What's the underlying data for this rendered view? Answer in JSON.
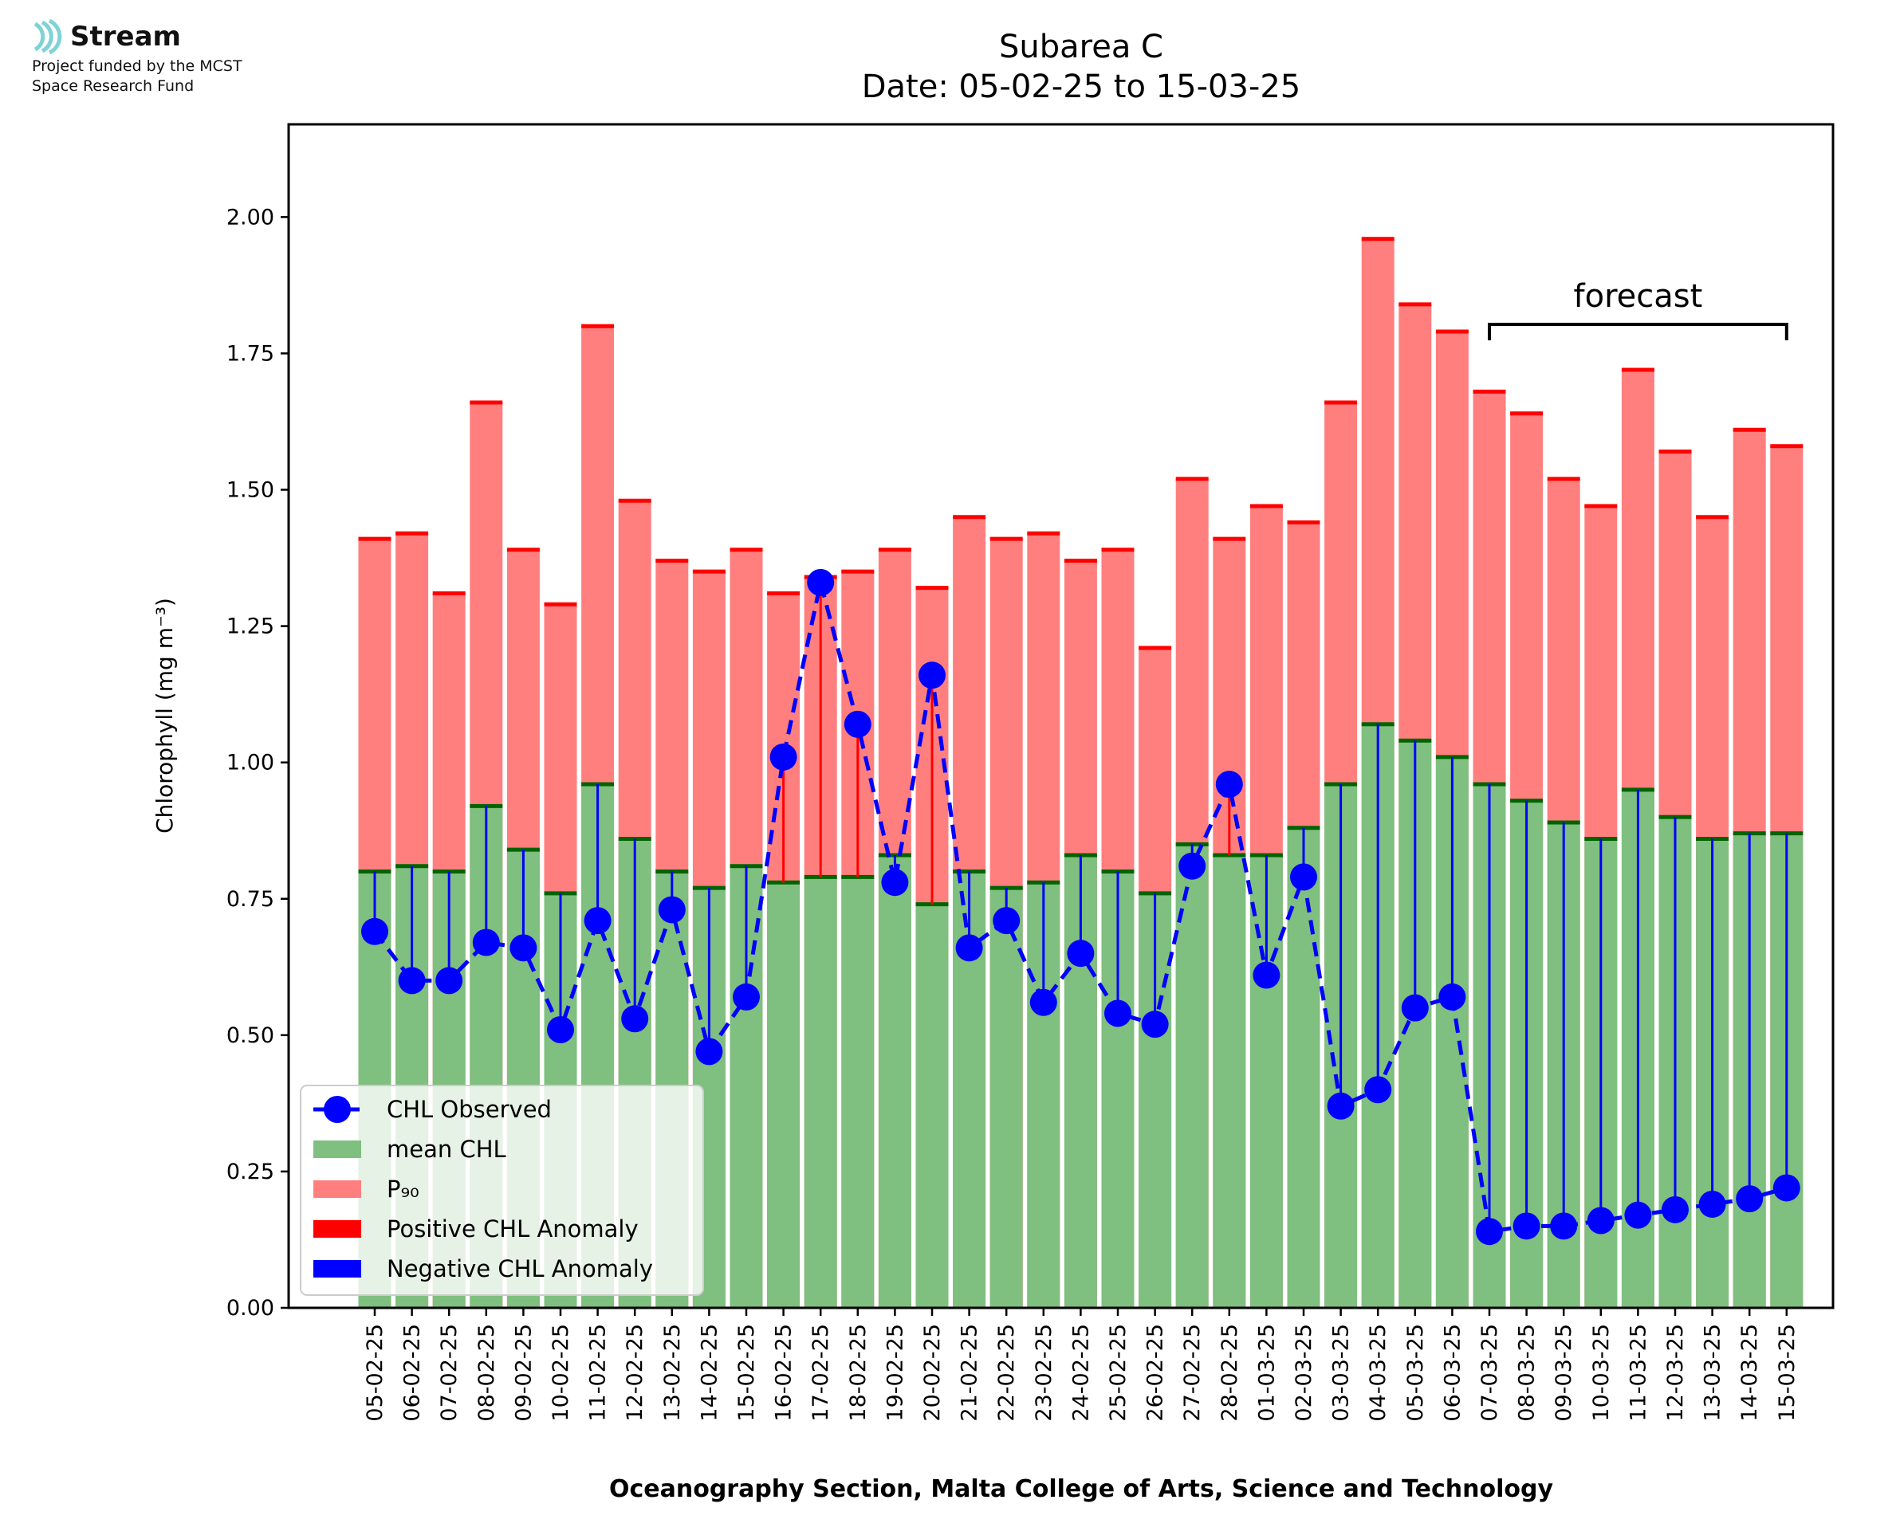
{
  "logo": {
    "name": "Stream",
    "line1": "Project funded by the MCST",
    "line2": "Space Research Fund"
  },
  "chart_data": {
    "type": "bar",
    "title": "Subarea C",
    "subtitle": "Date: 05-02-25 to 15-03-25",
    "xlabel": "Oceanography Section, Malta College of Arts, Science and Technology",
    "ylabel": "Chlorophyll (mg m⁻³)",
    "ylim": [
      0,
      2.17
    ],
    "yticks": [
      "0.00",
      "0.25",
      "0.50",
      "0.75",
      "1.00",
      "1.25",
      "1.50",
      "1.75",
      "2.00"
    ],
    "grid": false,
    "legend_position": "lower-left",
    "forecast_label": "forecast",
    "forecast_range": [
      "07-03-25",
      "15-03-25"
    ],
    "categories": [
      "05-02-25",
      "06-02-25",
      "07-02-25",
      "08-02-25",
      "09-02-25",
      "10-02-25",
      "11-02-25",
      "12-02-25",
      "13-02-25",
      "14-02-25",
      "15-02-25",
      "16-02-25",
      "17-02-25",
      "18-02-25",
      "19-02-25",
      "20-02-25",
      "21-02-25",
      "22-02-25",
      "23-02-25",
      "24-02-25",
      "25-02-25",
      "26-02-25",
      "27-02-25",
      "28-02-25",
      "01-03-25",
      "02-03-25",
      "03-03-25",
      "04-03-25",
      "05-03-25",
      "06-03-25",
      "07-03-25",
      "08-03-25",
      "09-03-25",
      "10-03-25",
      "11-03-25",
      "12-03-25",
      "13-03-25",
      "14-03-25",
      "15-03-25"
    ],
    "series": [
      {
        "name": "mean CHL",
        "color": "#7fbf7f",
        "values": [
          0.8,
          0.81,
          0.8,
          0.92,
          0.84,
          0.76,
          0.96,
          0.86,
          0.8,
          0.77,
          0.81,
          0.78,
          0.79,
          0.79,
          0.83,
          0.74,
          0.8,
          0.77,
          0.78,
          0.83,
          0.8,
          0.76,
          0.85,
          0.83,
          0.83,
          0.88,
          0.96,
          1.07,
          1.04,
          1.01,
          0.96,
          0.93,
          0.89,
          0.86,
          0.95,
          0.9,
          0.86,
          0.87,
          0.87
        ]
      },
      {
        "name": "P₉₀",
        "color": "#ff7f7f",
        "values": [
          1.41,
          1.42,
          1.31,
          1.66,
          1.39,
          1.29,
          1.8,
          1.48,
          1.37,
          1.35,
          1.39,
          1.31,
          1.34,
          1.35,
          1.39,
          1.32,
          1.45,
          1.41,
          1.42,
          1.37,
          1.39,
          1.21,
          1.52,
          1.41,
          1.47,
          1.44,
          1.66,
          1.96,
          1.84,
          1.79,
          1.68,
          1.64,
          1.52,
          1.47,
          1.72,
          1.57,
          1.45,
          1.61,
          1.58
        ]
      },
      {
        "name": "CHL Observed",
        "color": "#0000ff",
        "values": [
          0.69,
          0.6,
          0.6,
          0.67,
          0.66,
          0.51,
          0.71,
          0.53,
          0.73,
          0.47,
          0.57,
          1.01,
          1.33,
          1.07,
          0.78,
          1.16,
          0.66,
          0.71,
          0.56,
          0.65,
          0.54,
          0.52,
          0.81,
          0.96,
          0.61,
          0.79,
          0.37,
          0.4,
          0.55,
          0.57,
          0.14,
          0.15,
          0.15,
          0.16,
          0.17,
          0.18,
          0.19,
          0.2,
          0.22
        ]
      }
    ],
    "legend": [
      {
        "label": "CHL Observed",
        "kind": "line-marker",
        "color": "#0000ff"
      },
      {
        "label": "mean CHL",
        "kind": "patch",
        "color": "#7fbf7f"
      },
      {
        "label": "P₉₀",
        "kind": "patch",
        "color": "#ff7f7f"
      },
      {
        "label": "Positive CHL Anomaly",
        "kind": "patch",
        "color": "#ff0000"
      },
      {
        "label": "Negative CHL Anomaly",
        "kind": "patch",
        "color": "#0000ff"
      }
    ]
  }
}
